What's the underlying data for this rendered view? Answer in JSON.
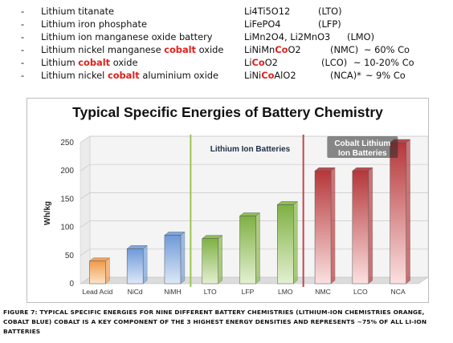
{
  "chemistries": [
    {
      "dash": "-",
      "name_parts": [
        {
          "t": "Lithium titanate"
        }
      ],
      "formula_parts": [
        {
          "t": "Li4Ti5O12"
        }
      ],
      "abbr": "(LTO)",
      "note": ""
    },
    {
      "dash": "-",
      "name_parts": [
        {
          "t": "Lithium iron phosphate"
        }
      ],
      "formula_parts": [
        {
          "t": "LiFePO4"
        }
      ],
      "abbr": "(LFP)",
      "note": ""
    },
    {
      "dash": "-",
      "name_parts": [
        {
          "t": "Lithium ion manganese oxide battery"
        }
      ],
      "formula_parts": [
        {
          "t": "LiMn2O4, Li2MnO3"
        }
      ],
      "abbr": "(LMO)",
      "note": ""
    },
    {
      "dash": "-",
      "name_parts": [
        {
          "t": "Lithium nickel manganese "
        },
        {
          "t": "cobalt",
          "red": true
        },
        {
          "t": " oxide"
        }
      ],
      "formula_parts": [
        {
          "t": "LiNiMn"
        },
        {
          "t": "Co",
          "red": true
        },
        {
          "t": "O2"
        }
      ],
      "abbr": "(NMC)",
      "note": "~ 60% Co"
    },
    {
      "dash": "-",
      "name_parts": [
        {
          "t": "Lithium "
        },
        {
          "t": "cobalt",
          "red": true
        },
        {
          "t": " oxide"
        }
      ],
      "formula_parts": [
        {
          "t": "Li"
        },
        {
          "t": "Co",
          "red": true
        },
        {
          "t": "O2"
        }
      ],
      "abbr": "(LCO)",
      "note": "~ 10-20% Co"
    },
    {
      "dash": "-",
      "name_parts": [
        {
          "t": "Lithium nickel "
        },
        {
          "t": "cobalt",
          "red": true
        },
        {
          "t": " aluminium oxide"
        }
      ],
      "formula_parts": [
        {
          "t": "LiNi"
        },
        {
          "t": "Co",
          "red": true
        },
        {
          "t": "AlO2"
        }
      ],
      "abbr": "(NCA)*",
      "note": "~ 9% Co"
    }
  ],
  "chart_data": {
    "type": "bar",
    "title": "Typical Specific Energies of Battery Chemistry",
    "xlabel": "",
    "ylabel": "Wh/kg",
    "ylim": [
      0,
      250
    ],
    "yticks": [
      0,
      50,
      100,
      150,
      200,
      250
    ],
    "categories": [
      "Lead Acid",
      "NiCd",
      "NiMH",
      "LTO",
      "LFP",
      "LMO",
      "NMC",
      "LCO",
      "NCA"
    ],
    "values": [
      40,
      62,
      86,
      80,
      120,
      140,
      200,
      200,
      250
    ],
    "bar_colors": [
      "#f4a35a",
      "#7fa7dc",
      "#7fa7dc",
      "#8fbd55",
      "#8fbd55",
      "#8fbd55",
      "#c0474a",
      "#c0474a",
      "#c0474a"
    ],
    "group_labels": [
      {
        "text": "Lithium Ion Batteries",
        "color": "#1f2e47"
      },
      {
        "text": "Cobalt Lithium Ion Batteries",
        "color": "#ffffff"
      }
    ],
    "divider_colors": [
      "#9cc34a",
      "#c0474a"
    ],
    "grid": true
  },
  "caption": "Figure 7: Typical specific energies for nine different battery chemistries (lithium-ion chemistries orange, cobalt blue) Cobalt is a key component of the 3 highest energy densities and represents ~75% of all li-ion batteries"
}
